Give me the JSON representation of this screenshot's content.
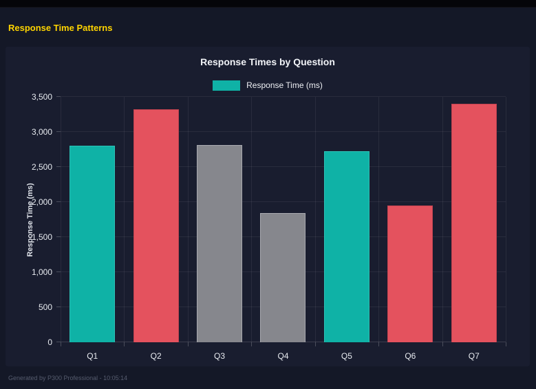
{
  "header": {
    "title": "Response Time Patterns"
  },
  "chart_data": {
    "type": "bar",
    "title": "Response Times by Question",
    "legend": [
      {
        "label": "Response Time (ms)",
        "color": "#0fb2a6"
      }
    ],
    "legend_position": "top",
    "categories": [
      "Q1",
      "Q2",
      "Q3",
      "Q4",
      "Q5",
      "Q6",
      "Q7"
    ],
    "values": [
      2800,
      3320,
      2810,
      1840,
      2730,
      1950,
      3400
    ],
    "bar_colors": [
      "#0fb2a6",
      "#e4525e",
      "#86878d",
      "#86878d",
      "#0fb2a6",
      "#e4525e",
      "#e4525e"
    ],
    "bar_border_colors": [
      "#2cc3b7",
      "#c24350",
      "#a9aab0",
      "#a9aab0",
      "#2cc3b7",
      "#c24350",
      "#c24350"
    ],
    "xlabel": "",
    "ylabel": "Response Time (ms)",
    "ylim": [
      0,
      3500
    ],
    "ytick_step": 500,
    "ytick_labels": [
      "0",
      "500",
      "1,000",
      "1,500",
      "2,000",
      "2,500",
      "3,000",
      "3,500"
    ],
    "grid": true
  },
  "footer": {
    "text": "Generated by P300 Professional - 10:05:14"
  }
}
